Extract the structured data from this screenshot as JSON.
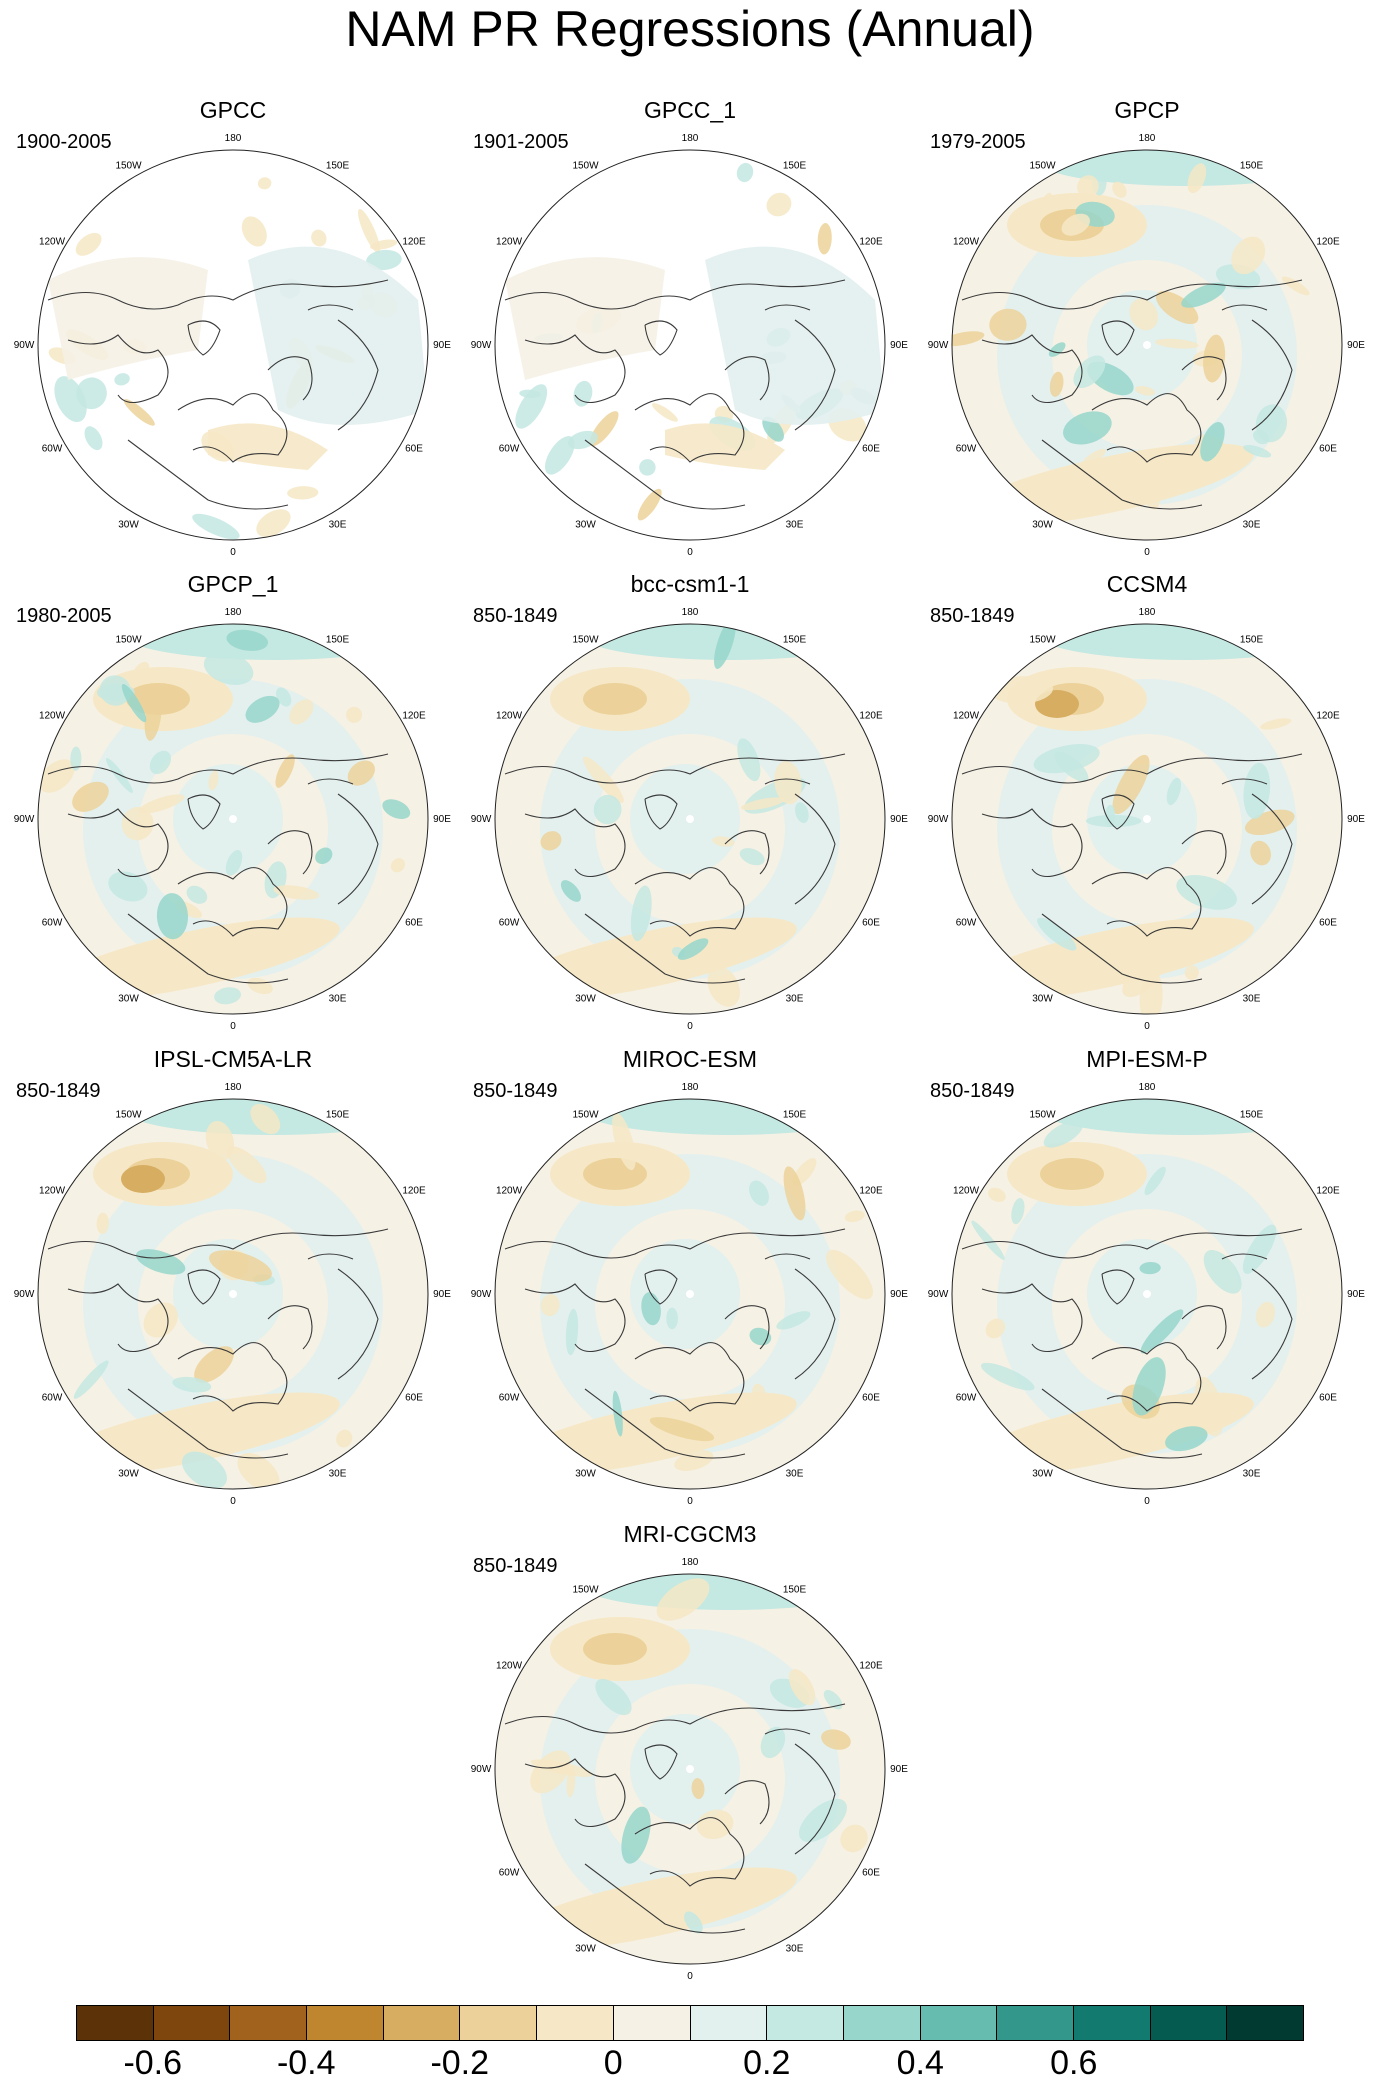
{
  "title": "NAM PR Regressions (Annual)",
  "panels": [
    {
      "title": "GPCC",
      "period": "1900-2005",
      "masked": true,
      "style": "obs"
    },
    {
      "title": "GPCC_1",
      "period": "1901-2005",
      "masked": true,
      "style": "obs"
    },
    {
      "title": "GPCP",
      "period": "1979-2005",
      "masked": false,
      "style": "obs"
    },
    {
      "title": "GPCP_1",
      "period": "1980-2005",
      "masked": false,
      "style": "obs"
    },
    {
      "title": "bcc-csm1-1",
      "period": "850-1849",
      "masked": false,
      "style": "model"
    },
    {
      "title": "CCSM4",
      "period": "850-1849",
      "masked": false,
      "style": "model"
    },
    {
      "title": "IPSL-CM5A-LR",
      "period": "850-1849",
      "masked": false,
      "style": "model"
    },
    {
      "title": "MIROC-ESM",
      "period": "850-1849",
      "masked": false,
      "style": "model"
    },
    {
      "title": "MPI-ESM-P",
      "period": "850-1849",
      "masked": false,
      "style": "model"
    },
    {
      "title": "MRI-CGCM3",
      "period": "850-1849",
      "masked": false,
      "style": "model"
    }
  ],
  "longitude_labels": [
    "180",
    "150E",
    "120E",
    "90E",
    "60E",
    "30E",
    "0",
    "30W",
    "60W",
    "90W",
    "120W",
    "150W"
  ],
  "colorbar": {
    "colors": [
      "#5c3208",
      "#7e450d",
      "#a0621c",
      "#c0862f",
      "#d7ad62",
      "#ecd29a",
      "#f6e8c6",
      "#f5f1e5",
      "#e2f0ee",
      "#c4e8e2",
      "#97d6cb",
      "#66bdaf",
      "#33978c",
      "#127a6e",
      "#055b4f",
      "#013a31"
    ],
    "tick_labels": [
      "-0.6",
      "-0.4",
      "-0.2",
      "0",
      "0.2",
      "0.4",
      "0.6"
    ]
  }
}
